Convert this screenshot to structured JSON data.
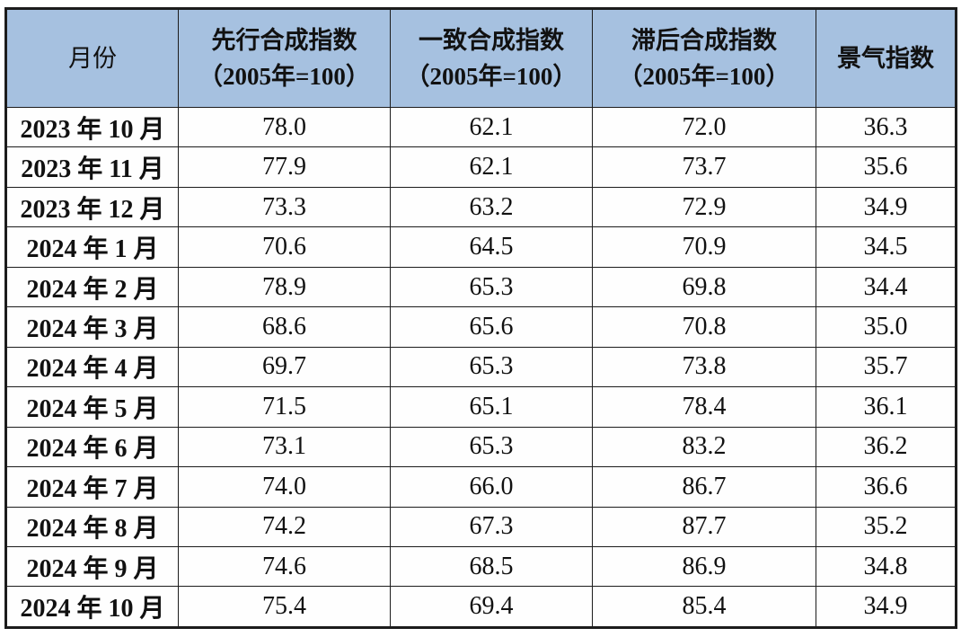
{
  "colors": {
    "header_bg": "#a6c1e0",
    "border": "#1c1c1c",
    "row_bg": "#fefefe",
    "text": "#111111"
  },
  "table": {
    "columns": [
      {
        "id": "month",
        "title": "月份",
        "subtitle": ""
      },
      {
        "id": "leading",
        "title": "先行合成指数",
        "subtitle": "（2005年=100）"
      },
      {
        "id": "coincident",
        "title": "一致合成指数",
        "subtitle": "（2005年=100）"
      },
      {
        "id": "lagging",
        "title": "滞后合成指数",
        "subtitle": "（2005年=100）"
      },
      {
        "id": "prosperity",
        "title": "景气指数",
        "subtitle": ""
      }
    ],
    "rows": [
      {
        "month": "2023 年 10 月",
        "leading": "78.0",
        "coincident": "62.1",
        "lagging": "72.0",
        "prosperity": "36.3"
      },
      {
        "month": "2023 年 11 月",
        "leading": "77.9",
        "coincident": "62.1",
        "lagging": "73.7",
        "prosperity": "35.6"
      },
      {
        "month": "2023 年 12 月",
        "leading": "73.3",
        "coincident": "63.2",
        "lagging": "72.9",
        "prosperity": "34.9"
      },
      {
        "month": "2024 年 1 月",
        "leading": "70.6",
        "coincident": "64.5",
        "lagging": "70.9",
        "prosperity": "34.5"
      },
      {
        "month": "2024 年 2 月",
        "leading": "78.9",
        "coincident": "65.3",
        "lagging": "69.8",
        "prosperity": "34.4"
      },
      {
        "month": "2024 年 3 月",
        "leading": "68.6",
        "coincident": "65.6",
        "lagging": "70.8",
        "prosperity": "35.0"
      },
      {
        "month": "2024 年 4 月",
        "leading": "69.7",
        "coincident": "65.3",
        "lagging": "73.8",
        "prosperity": "35.7"
      },
      {
        "month": "2024 年 5 月",
        "leading": "71.5",
        "coincident": "65.1",
        "lagging": "78.4",
        "prosperity": "36.1"
      },
      {
        "month": "2024 年 6 月",
        "leading": "73.1",
        "coincident": "65.3",
        "lagging": "83.2",
        "prosperity": "36.2"
      },
      {
        "month": "2024 年 7 月",
        "leading": "74.0",
        "coincident": "66.0",
        "lagging": "86.7",
        "prosperity": "36.6"
      },
      {
        "month": "2024 年 8 月",
        "leading": "74.2",
        "coincident": "67.3",
        "lagging": "87.7",
        "prosperity": "35.2"
      },
      {
        "month": "2024 年 9 月",
        "leading": "74.6",
        "coincident": "68.5",
        "lagging": "86.9",
        "prosperity": "34.8"
      },
      {
        "month": "2024 年 10 月",
        "leading": "75.4",
        "coincident": "69.4",
        "lagging": "85.4",
        "prosperity": "34.9"
      }
    ]
  }
}
